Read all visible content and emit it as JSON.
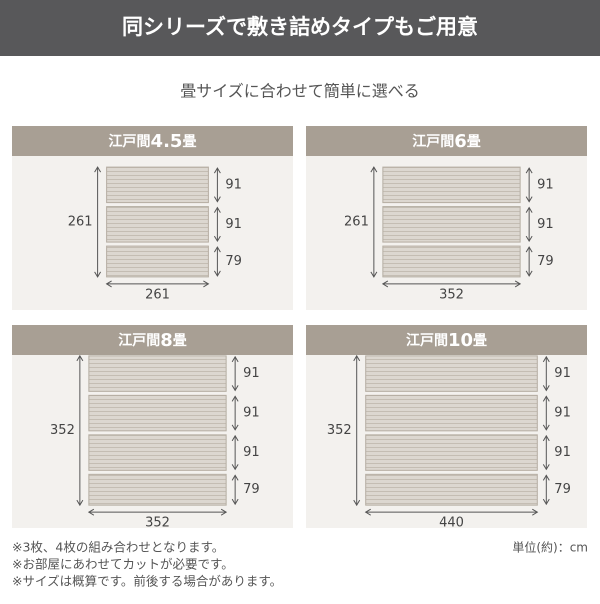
{
  "header": {
    "title": "同シリーズで敷き詰めタイプもご用意"
  },
  "subtitle": "畳サイズに合わせて簡単に選べる",
  "panels": [
    {
      "title_prefix": "江戸間",
      "title_size": "4.5",
      "title_suffix": "畳",
      "height": 261,
      "width": 261,
      "rows": [
        91,
        91,
        79
      ]
    },
    {
      "title_prefix": "江戸間",
      "title_size": "6",
      "title_suffix": "畳",
      "height": 261,
      "width": 352,
      "rows": [
        91,
        91,
        79
      ]
    },
    {
      "title_prefix": "江戸間",
      "title_size": "8",
      "title_suffix": "畳",
      "height": 352,
      "width": 352,
      "rows": [
        91,
        91,
        91,
        79
      ]
    },
    {
      "title_prefix": "江戸間",
      "title_size": "10",
      "title_suffix": "畳",
      "height": 352,
      "width": 440,
      "rows": [
        91,
        91,
        91,
        79
      ]
    }
  ],
  "notes": [
    "※3枚、4枚の組み合わせとなります。",
    "※お部屋にあわせてカットが必要です。",
    "※サイズは概算です。前後する場合があります。"
  ],
  "unit": "単位(約)：cm"
}
